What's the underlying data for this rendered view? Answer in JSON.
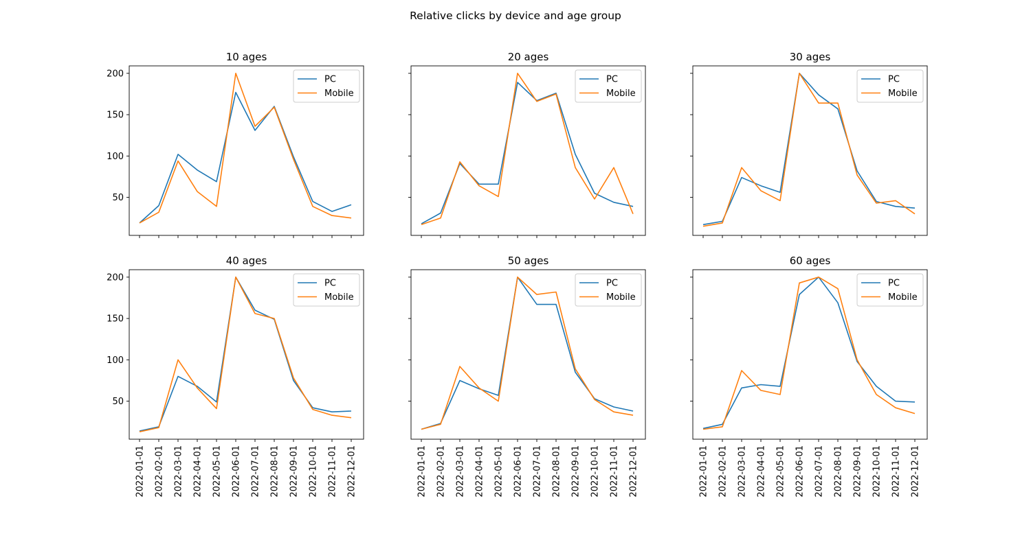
{
  "figure": {
    "title": "Relative clicks by device and age group"
  },
  "colors": {
    "pc": "#1f77b4",
    "mobile": "#ff7f0e"
  },
  "chart_data": [
    {
      "type": "line",
      "title": "10 ages",
      "x": [
        "2022-01-01",
        "2022-02-01",
        "2022-03-01",
        "2022-04-01",
        "2022-05-01",
        "2022-06-01",
        "2022-07-01",
        "2022-08-01",
        "2022-09-01",
        "2022-10-01",
        "2022-11-01",
        "2022-12-01"
      ],
      "ylim": [
        4,
        209
      ],
      "yticks": [
        50,
        100,
        150,
        200
      ],
      "legend": "top-right",
      "series": [
        {
          "name": "PC",
          "values": [
            19,
            40,
            102,
            83,
            69,
            177,
            131,
            160,
            99,
            45,
            33,
            41
          ]
        },
        {
          "name": "Mobile",
          "values": [
            19,
            32,
            94,
            57,
            39,
            200,
            136,
            159,
            96,
            39,
            28,
            25
          ]
        }
      ]
    },
    {
      "type": "line",
      "title": "20 ages",
      "x": [
        "2022-01-01",
        "2022-02-01",
        "2022-03-01",
        "2022-04-01",
        "2022-05-01",
        "2022-06-01",
        "2022-07-01",
        "2022-08-01",
        "2022-09-01",
        "2022-10-01",
        "2022-11-01",
        "2022-12-01"
      ],
      "ylim": [
        4,
        209
      ],
      "yticks": [
        50,
        100,
        150,
        200
      ],
      "legend": "top-right",
      "series": [
        {
          "name": "PC",
          "values": [
            18,
            31,
            91,
            66,
            66,
            189,
            167,
            176,
            102,
            55,
            44,
            39
          ]
        },
        {
          "name": "Mobile",
          "values": [
            17,
            25,
            93,
            64,
            51,
            200,
            166,
            175,
            86,
            48,
            86,
            30
          ]
        }
      ]
    },
    {
      "type": "line",
      "title": "30 ages",
      "x": [
        "2022-01-01",
        "2022-02-01",
        "2022-03-01",
        "2022-04-01",
        "2022-05-01",
        "2022-06-01",
        "2022-07-01",
        "2022-08-01",
        "2022-09-01",
        "2022-10-01",
        "2022-11-01",
        "2022-12-01"
      ],
      "ylim": [
        4,
        209
      ],
      "yticks": [
        50,
        100,
        150,
        200
      ],
      "legend": "top-right",
      "series": [
        {
          "name": "PC",
          "values": [
            17,
            21,
            74,
            64,
            56,
            200,
            174,
            157,
            82,
            45,
            39,
            37
          ]
        },
        {
          "name": "Mobile",
          "values": [
            15,
            19,
            86,
            58,
            46,
            200,
            164,
            164,
            77,
            43,
            46,
            30
          ]
        }
      ]
    },
    {
      "type": "line",
      "title": "40 ages",
      "x": [
        "2022-01-01",
        "2022-02-01",
        "2022-03-01",
        "2022-04-01",
        "2022-05-01",
        "2022-06-01",
        "2022-07-01",
        "2022-08-01",
        "2022-09-01",
        "2022-10-01",
        "2022-11-01",
        "2022-12-01"
      ],
      "ylim": [
        4,
        209
      ],
      "yticks": [
        50,
        100,
        150,
        200
      ],
      "legend": "top-right",
      "series": [
        {
          "name": "PC",
          "values": [
            14,
            19,
            80,
            68,
            49,
            200,
            160,
            149,
            75,
            42,
            37,
            38
          ]
        },
        {
          "name": "Mobile",
          "values": [
            13,
            18,
            100,
            66,
            41,
            200,
            156,
            150,
            78,
            40,
            33,
            30
          ]
        }
      ]
    },
    {
      "type": "line",
      "title": "50 ages",
      "x": [
        "2022-01-01",
        "2022-02-01",
        "2022-03-01",
        "2022-04-01",
        "2022-05-01",
        "2022-06-01",
        "2022-07-01",
        "2022-08-01",
        "2022-09-01",
        "2022-10-01",
        "2022-11-01",
        "2022-12-01"
      ],
      "ylim": [
        4,
        209
      ],
      "yticks": [
        50,
        100,
        150,
        200
      ],
      "legend": "top-right",
      "series": [
        {
          "name": "PC",
          "values": [
            16,
            23,
            75,
            65,
            57,
            200,
            167,
            167,
            85,
            53,
            43,
            38
          ]
        },
        {
          "name": "Mobile",
          "values": [
            16,
            22,
            92,
            66,
            50,
            200,
            179,
            182,
            89,
            52,
            37,
            33
          ]
        }
      ]
    },
    {
      "type": "line",
      "title": "60 ages",
      "x": [
        "2022-01-01",
        "2022-02-01",
        "2022-03-01",
        "2022-04-01",
        "2022-05-01",
        "2022-06-01",
        "2022-07-01",
        "2022-08-01",
        "2022-09-01",
        "2022-10-01",
        "2022-11-01",
        "2022-12-01"
      ],
      "ylim": [
        4,
        209
      ],
      "yticks": [
        50,
        100,
        150,
        200
      ],
      "legend": "top-right",
      "series": [
        {
          "name": "PC",
          "values": [
            17,
            22,
            66,
            70,
            68,
            179,
            200,
            169,
            98,
            68,
            50,
            49
          ]
        },
        {
          "name": "Mobile",
          "values": [
            16,
            19,
            87,
            63,
            58,
            193,
            200,
            186,
            100,
            58,
            42,
            35
          ]
        }
      ]
    }
  ]
}
